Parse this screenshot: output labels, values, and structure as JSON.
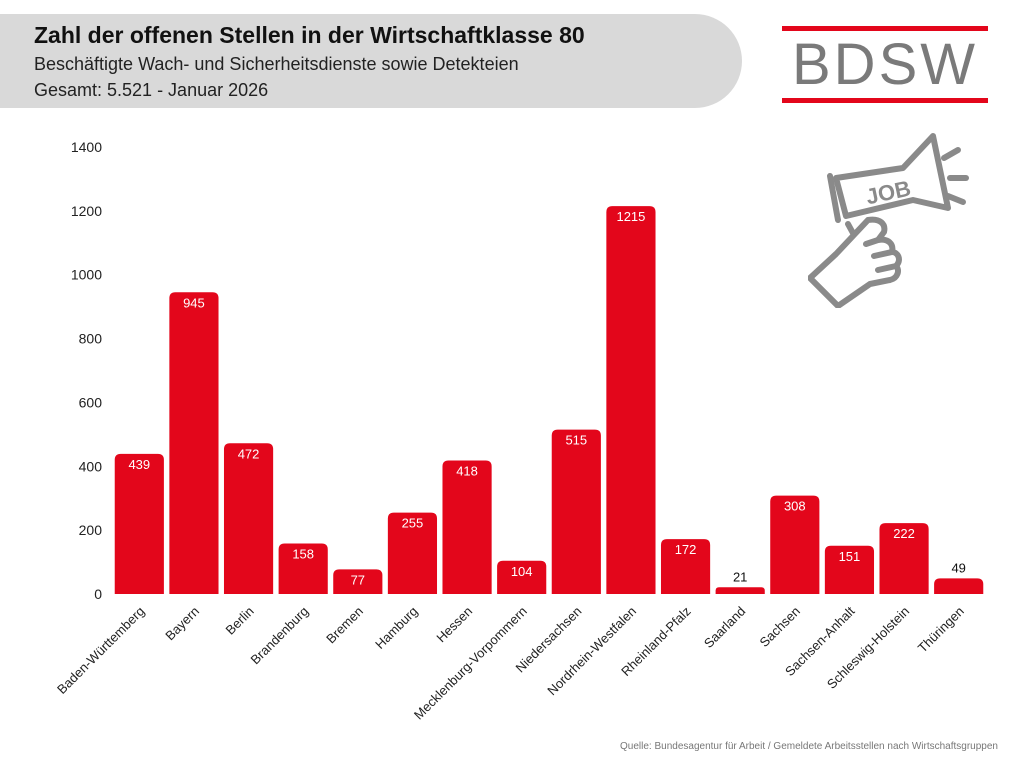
{
  "header": {
    "title": "Zahl der offenen Stellen in der Wirtschaftklasse 80",
    "subtitle": "Beschäftigte Wach- und Sicherheitsdienste sowie Detekteien",
    "subtitle2": "Gesamt: 5.521 - Januar 2026"
  },
  "logo": {
    "text": "BDSW",
    "accent_color": "#e3061b",
    "text_color": "#7a7a7a"
  },
  "illustration": {
    "badge_text": "JOB",
    "icon": "megaphone-hand-icon"
  },
  "source": "Quelle: Bundesagentur für Arbeit / Gemeldete Arbeitsstellen nach Wirtschaftsgruppen",
  "chart_data": {
    "type": "bar",
    "categories": [
      "Baden-Württemberg",
      "Bayern",
      "Berlin",
      "Brandenburg",
      "Bremen",
      "Hamburg",
      "Hessen",
      "Mecklenburg-Vorpommern",
      "Niedersachsen",
      "Nordrhein-Westfalen",
      "Rheinland-Pfalz",
      "Saarland",
      "Sachsen",
      "Sachsen-Anhalt",
      "Schleswig-Holstein",
      "Thüringen"
    ],
    "values": [
      439,
      945,
      472,
      158,
      77,
      255,
      418,
      104,
      515,
      1215,
      172,
      21,
      308,
      151,
      222,
      49
    ],
    "y_ticks": [
      0,
      200,
      400,
      600,
      800,
      1000,
      1200,
      1400
    ],
    "ylim": [
      0,
      1400
    ],
    "grid": false,
    "bar_color": "#e3061b",
    "label_color_inside": "#ffffff",
    "label_color_outside": "#111111"
  }
}
